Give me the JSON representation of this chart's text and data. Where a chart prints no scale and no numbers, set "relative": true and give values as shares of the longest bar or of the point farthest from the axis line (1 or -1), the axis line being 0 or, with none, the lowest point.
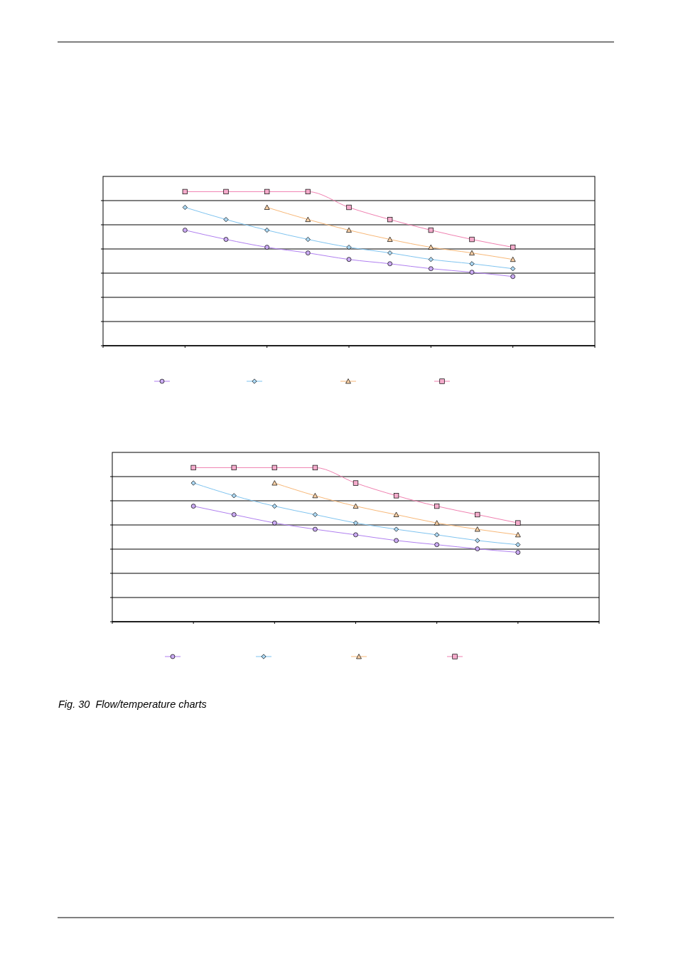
{
  "chart_data": [
    {
      "type": "line",
      "relative": true,
      "categories": [
        null,
        null,
        null,
        null,
        null,
        null,
        null,
        null,
        null
      ],
      "grid": "y",
      "series": [
        {
          "color": "#b07ff0",
          "marker": "circle",
          "values": [
            0.75,
            0.69,
            0.639,
            0.602,
            0.56,
            0.532,
            0.5,
            0.477,
            0.449
          ]
        },
        {
          "color": "#7fc4f0",
          "marker": "diamond",
          "values": [
            0.898,
            0.819,
            0.75,
            0.69,
            0.639,
            0.602,
            0.56,
            0.532,
            0.5
          ]
        },
        {
          "color": "#f8b878",
          "marker": "triangle",
          "values": [
            null,
            null,
            0.898,
            0.819,
            0.75,
            0.69,
            0.639,
            0.602,
            0.56
          ]
        },
        {
          "color": "#f080b0",
          "marker": "square",
          "values": [
            1,
            1,
            1,
            1,
            0.898,
            0.819,
            0.75,
            0.69,
            0.639
          ]
        }
      ]
    },
    {
      "type": "line",
      "relative": true,
      "categories": [
        null,
        null,
        null,
        null,
        null,
        null,
        null,
        null,
        null
      ],
      "grid": "y",
      "annotations": [
        "Fig. 30  Flow/temperature charts"
      ],
      "series": [
        {
          "color": "#b07ff0",
          "marker": "circle",
          "values": [
            0.75,
            0.695,
            0.641,
            0.6,
            0.564,
            0.527,
            0.5,
            0.473,
            0.45
          ]
        },
        {
          "color": "#7fc4f0",
          "marker": "diamond",
          "values": [
            0.9,
            0.818,
            0.75,
            0.695,
            0.641,
            0.6,
            0.564,
            0.527,
            0.5
          ]
        },
        {
          "color": "#f8b878",
          "marker": "triangle",
          "values": [
            null,
            null,
            0.9,
            0.818,
            0.75,
            0.695,
            0.641,
            0.6,
            0.564
          ]
        },
        {
          "color": "#f080b0",
          "marker": "square",
          "values": [
            1,
            1,
            1,
            1,
            0.9,
            0.818,
            0.75,
            0.695,
            0.641
          ]
        }
      ]
    }
  ]
}
